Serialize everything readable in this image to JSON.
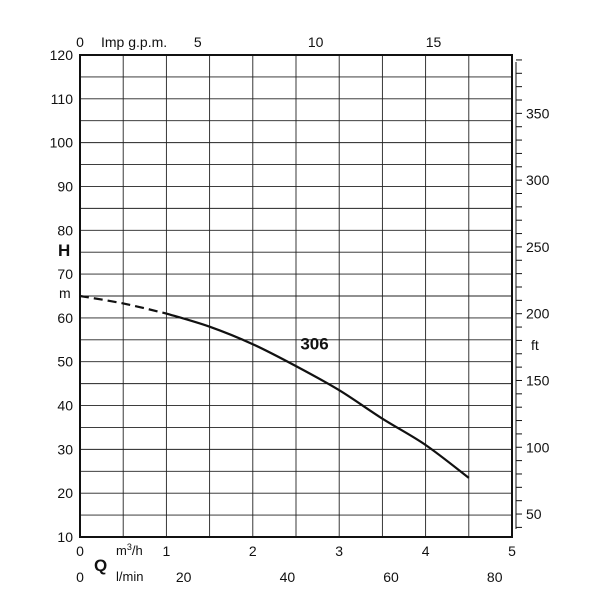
{
  "chart_data": {
    "type": "line",
    "x_axis": {
      "symbol": "Q",
      "primary": {
        "unit": "m³/h",
        "unit_base": "m",
        "unit_sup": "3",
        "unit_tail": "/h",
        "range": [
          0,
          5
        ],
        "ticks": [
          "0",
          "1",
          "2",
          "3",
          "4",
          "5"
        ]
      },
      "secondary": {
        "unit": "l/min",
        "range_m3h": [
          0,
          5
        ],
        "ticks": [
          {
            "label": "0",
            "value": 0
          },
          {
            "label": "20",
            "value": 20
          },
          {
            "label": "40",
            "value": 40
          },
          {
            "label": "60",
            "value": 60
          },
          {
            "label": "80",
            "value": 80
          }
        ]
      },
      "top": {
        "unit": "Imp g.p.m.",
        "ticks": [
          {
            "label": "0",
            "value": 0
          },
          {
            "label": "5",
            "value": 5
          },
          {
            "label": "10",
            "value": 10
          },
          {
            "label": "15",
            "value": 15
          }
        ]
      }
    },
    "y_axis": {
      "symbol": "H",
      "unit": "m",
      "range": [
        10,
        120
      ],
      "ticks": [
        "10",
        "20",
        "30",
        "40",
        "50",
        "60",
        "70",
        "80",
        "90",
        "100",
        "110",
        "120"
      ],
      "grid_step": 5
    },
    "y_axis_right": {
      "unit": "ft",
      "ticks": [
        {
          "label": "50",
          "value": 50
        },
        {
          "label": "100",
          "value": 100
        },
        {
          "label": "150",
          "value": 150
        },
        {
          "label": "200",
          "value": 200
        },
        {
          "label": "250",
          "value": 250
        },
        {
          "label": "300",
          "value": 300
        },
        {
          "label": "350",
          "value": 350
        }
      ]
    },
    "grid": true,
    "series": [
      {
        "name": "306",
        "dashed_until_x": 1.0,
        "x": [
          0,
          0.5,
          1.0,
          1.5,
          2.0,
          2.5,
          3.0,
          3.5,
          4.0,
          4.5
        ],
        "y": [
          65.0,
          63.3,
          61.0,
          58.0,
          54.0,
          49.0,
          43.5,
          37.0,
          31.0,
          23.5
        ]
      }
    ]
  }
}
